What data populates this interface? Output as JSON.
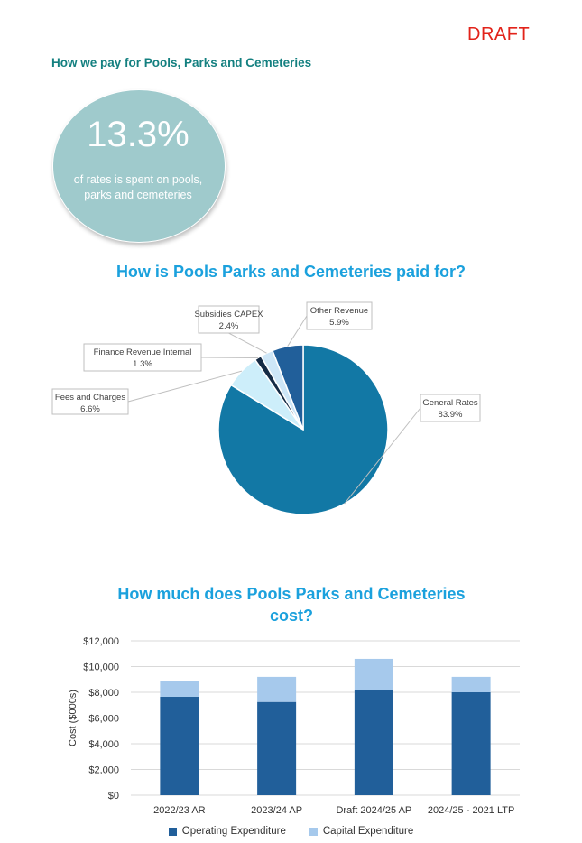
{
  "header": {
    "draft_label": "DRAFT",
    "section_heading": "How we pay for Pools, Parks and Cemeteries"
  },
  "stat": {
    "value": "13.3%",
    "caption": "of rates is spent on pools, parks and cemeteries"
  },
  "colors": {
    "accent_title": "#1ba1dd",
    "heading_teal": "#148080",
    "draft_red": "#e2231a",
    "circle_fill": "#9fcacc",
    "operating": "#215f9a",
    "capital": "#a6c9ec",
    "pie_general_rates": "#1278a5",
    "pie_fees": "#cdeefa",
    "pie_finance": "#152b45",
    "pie_subsidies": "#cde6f7",
    "pie_other": "#215f9a"
  },
  "chart_data": [
    {
      "type": "pie",
      "title": "How is Pools Parks and Cemeteries paid for?",
      "slices": [
        {
          "label": "General Rates",
          "value": 83.9,
          "value_label": "83.9%",
          "color": "#1278a5"
        },
        {
          "label": "Fees and Charges",
          "value": 6.6,
          "value_label": "6.6%",
          "color": "#cdeefa"
        },
        {
          "label": "Finance Revenue Internal",
          "value": 1.3,
          "value_label": "1.3%",
          "color": "#152b45"
        },
        {
          "label": "Subsidies CAPEX",
          "value": 2.4,
          "value_label": "2.4%",
          "color": "#cde6f7"
        },
        {
          "label": "Other Revenue",
          "value": 5.9,
          "value_label": "5.9%",
          "color": "#215f9a"
        }
      ],
      "start": "12 o'clock, clockwise",
      "legend": "callout labels"
    },
    {
      "type": "bar",
      "stacked": true,
      "title": "How much does Pools Parks and Cemeteries cost?",
      "categories": [
        "2022/23 AR",
        "2023/24 AP",
        "Draft 2024/25 AP",
        "2024/25 - 2021 LTP"
      ],
      "series": [
        {
          "name": "Operating Expenditure",
          "values": [
            7650,
            7250,
            8200,
            8000
          ],
          "color": "#215f9a"
        },
        {
          "name": "Capital Expenditure",
          "values": [
            1250,
            1950,
            2400,
            1200
          ],
          "color": "#a6c9ec"
        }
      ],
      "ylabel": "Cost ($000s)",
      "xlabel": "",
      "ylim": [
        0,
        12000
      ],
      "yticks": [
        0,
        2000,
        4000,
        6000,
        8000,
        10000,
        12000
      ],
      "ytick_labels": [
        "$0",
        "$2,000",
        "$4,000",
        "$6,000",
        "$8,000",
        "$10,000",
        "$12,000"
      ],
      "grid": true,
      "legend_position": "bottom"
    }
  ]
}
